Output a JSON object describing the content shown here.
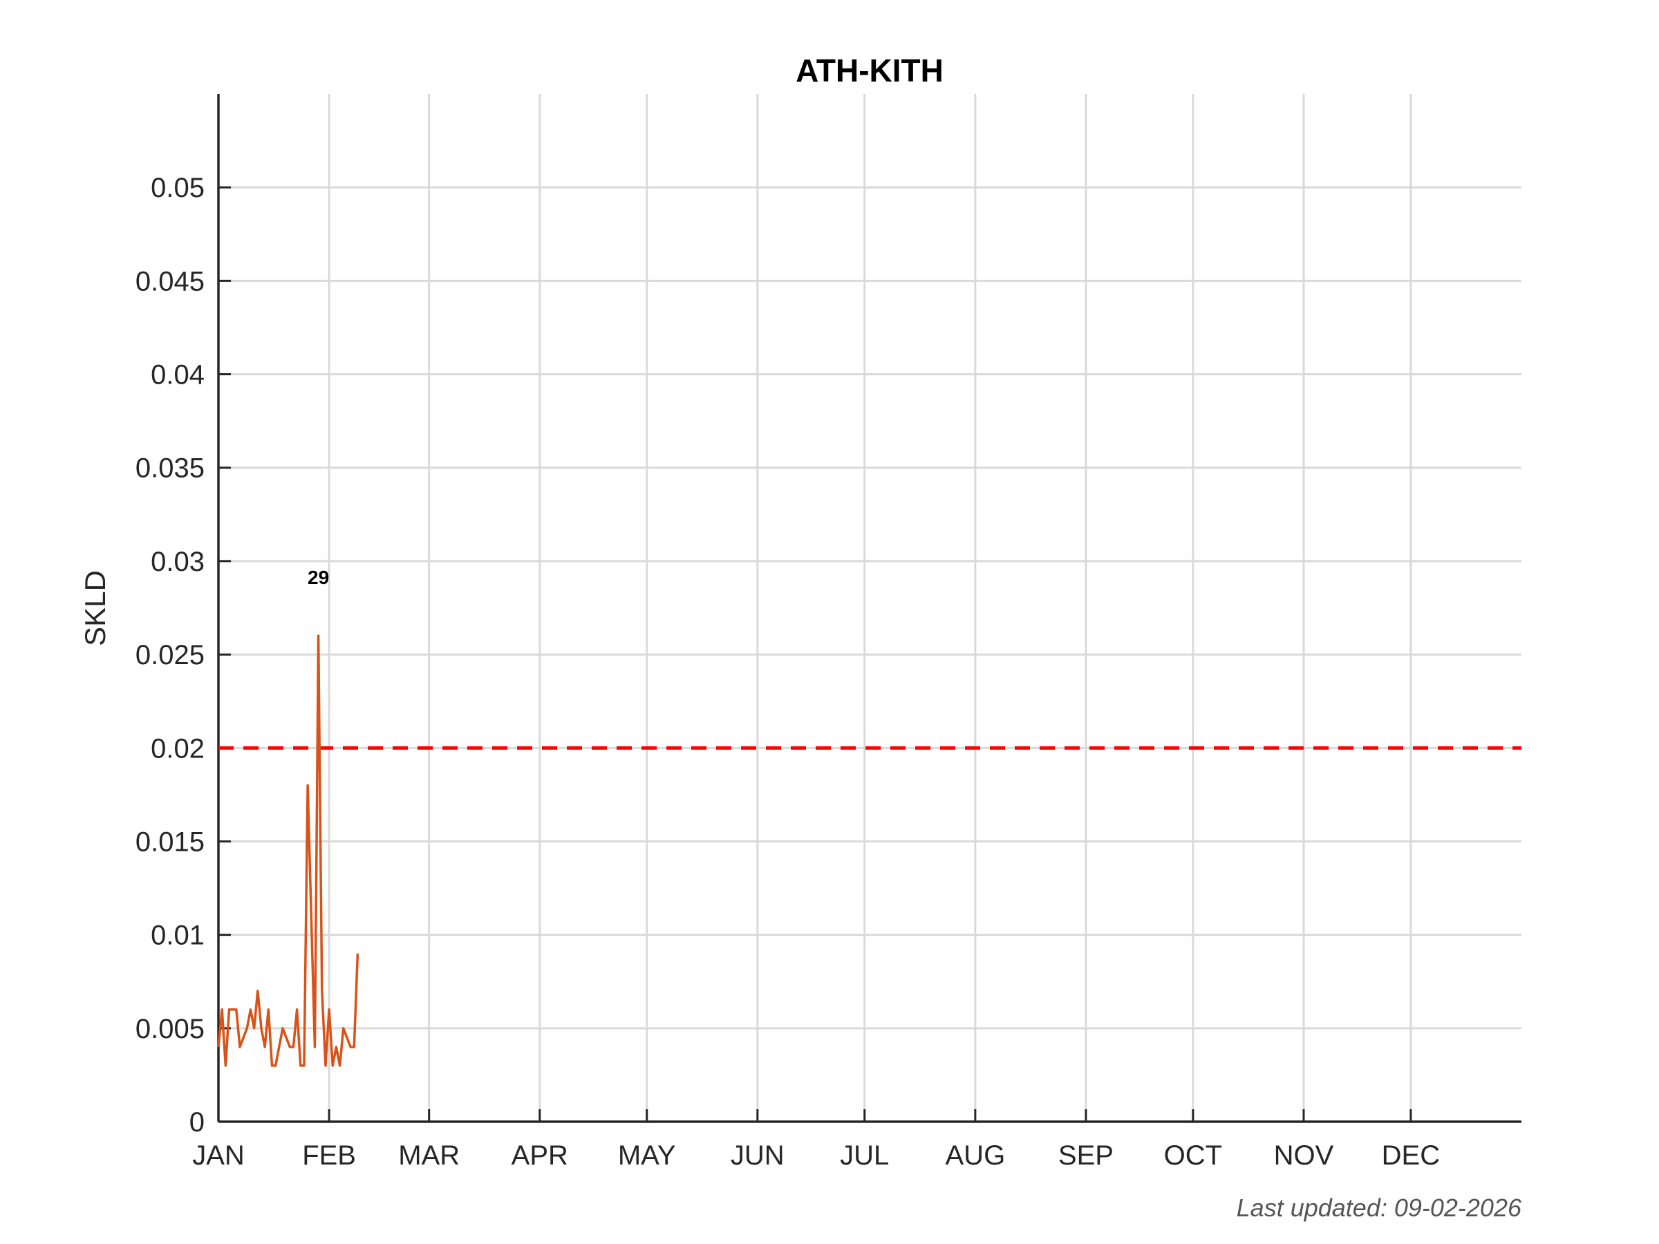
{
  "chart_data": {
    "type": "line",
    "title": "ATH-KITH",
    "y_label": "SKLD",
    "x": [
      1,
      2,
      3,
      4,
      5,
      6,
      7,
      8,
      9,
      10,
      11,
      12,
      13,
      14,
      15,
      16,
      17,
      18,
      19,
      20,
      21,
      22,
      23,
      24,
      25,
      26,
      27,
      28,
      29,
      30,
      31,
      32,
      33,
      34,
      35,
      36,
      37,
      38,
      39,
      40
    ],
    "series": [
      {
        "color": "#d95319",
        "values": [
          0.004,
          0.006,
          0.003,
          0.006,
          0.006,
          0.006,
          0.004,
          0.0045,
          0.005,
          0.006,
          0.005,
          0.007,
          0.005,
          0.004,
          0.006,
          0.003,
          0.003,
          0.004,
          0.005,
          0.0045,
          0.004,
          0.004,
          0.006,
          0.003,
          0.003,
          0.018,
          0.011,
          0.004,
          0.026,
          0.007,
          0.003,
          0.006,
          0.003,
          0.004,
          0.003,
          0.005,
          0.0045,
          0.004,
          0.004,
          0.009
        ]
      }
    ],
    "threshold": {
      "value": 0.02,
      "color": "#ff0000"
    },
    "peak_annotation": "29",
    "xlim": [
      1,
      366
    ],
    "xticks": [
      {
        "value": 1,
        "label": "JAN"
      },
      {
        "value": 32,
        "label": "FEB"
      },
      {
        "value": 60,
        "label": "MAR"
      },
      {
        "value": 91,
        "label": "APR"
      },
      {
        "value": 121,
        "label": "MAY"
      },
      {
        "value": 152,
        "label": "JUN"
      },
      {
        "value": 182,
        "label": "JUL"
      },
      {
        "value": 213,
        "label": "AUG"
      },
      {
        "value": 244,
        "label": "SEP"
      },
      {
        "value": 274,
        "label": "OCT"
      },
      {
        "value": 305,
        "label": "NOV"
      },
      {
        "value": 335,
        "label": "DEC"
      }
    ],
    "ylim": [
      0,
      0.055
    ],
    "yticks": [
      0,
      0.005,
      0.01,
      0.015,
      0.02,
      0.025,
      0.03,
      0.035,
      0.04,
      0.045,
      0.05
    ],
    "grid": true,
    "footer": "Last updated: 09-02-2026"
  }
}
